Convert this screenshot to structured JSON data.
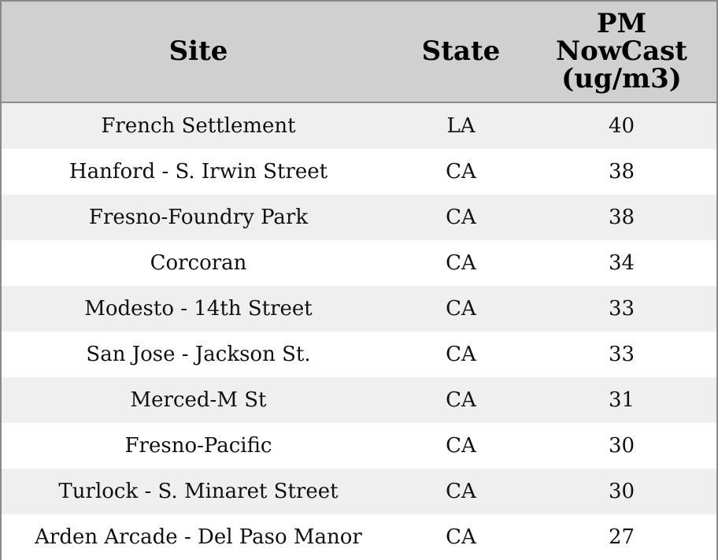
{
  "table": {
    "header": [
      "Site",
      "State",
      "PM NowCast (ug/m3)"
    ],
    "rows": [
      [
        "French Settlement",
        "LA",
        40
      ],
      [
        "Hanford - S. Irwin Street",
        "CA",
        38
      ],
      [
        "Fresno-Foundry Park",
        "CA",
        38
      ],
      [
        "Corcoran",
        "CA",
        34
      ],
      [
        "Modesto - 14th Street",
        "CA",
        33
      ],
      [
        "San Jose - Jackson St.",
        "CA",
        33
      ],
      [
        "Merced-M St",
        "CA",
        31
      ],
      [
        "Fresno-Pacific",
        "CA",
        30
      ],
      [
        "Turlock - S. Minaret Street",
        "CA",
        30
      ],
      [
        "Arden Arcade - Del Paso Manor",
        "CA",
        27
      ]
    ]
  }
}
